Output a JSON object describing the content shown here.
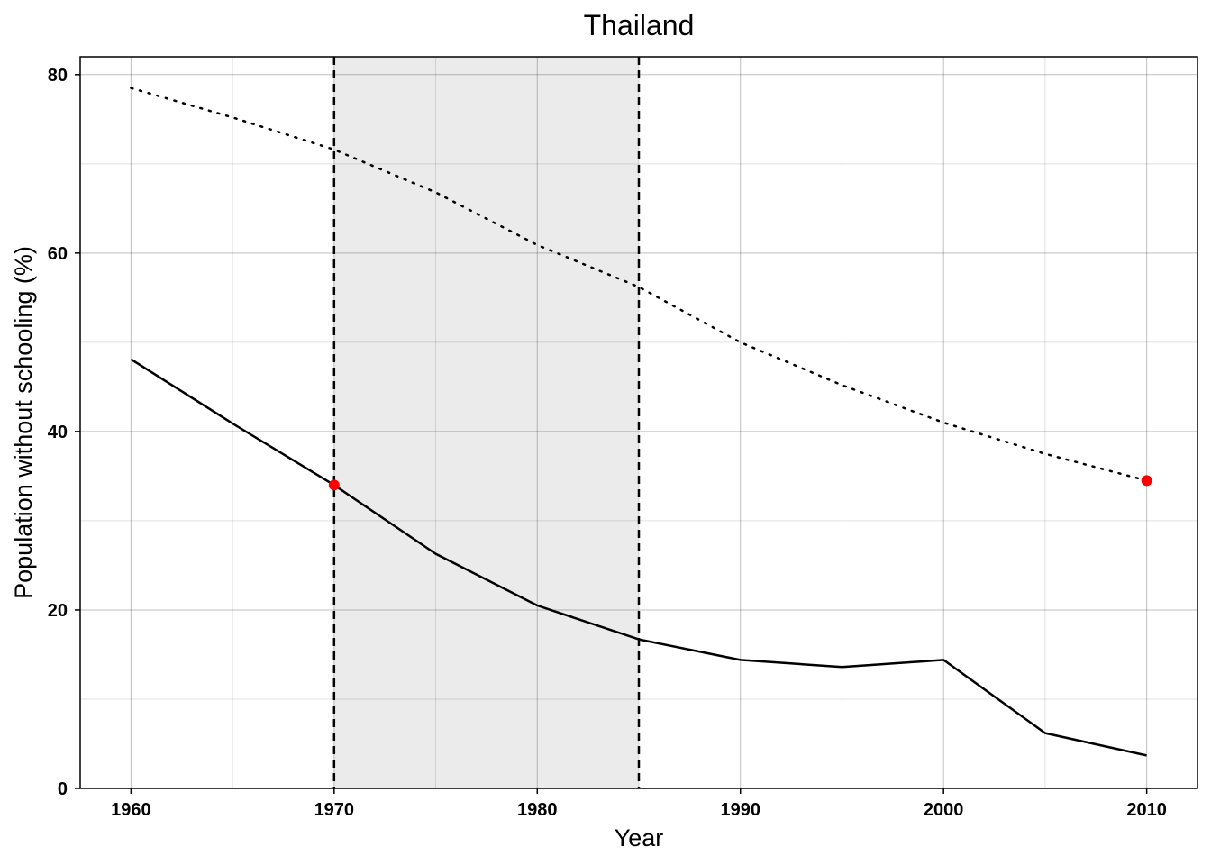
{
  "chart_data": {
    "type": "line",
    "title": "Thailand",
    "xlabel": "Year",
    "ylabel": "Population without schooling (%)",
    "xlim": [
      1957.5,
      2012.5
    ],
    "ylim": [
      0,
      82
    ],
    "x_ticks": [
      1960,
      1970,
      1980,
      1990,
      2000,
      2010
    ],
    "y_ticks": [
      0,
      20,
      40,
      60,
      80
    ],
    "grid": true,
    "shaded_region": {
      "x_start": 1970,
      "x_end": 1985,
      "color": "#ebebeb"
    },
    "vlines": [
      1970,
      1985
    ],
    "series": [
      {
        "style": "dotted",
        "color": "#000000",
        "x": [
          1960,
          1965,
          1970,
          1975,
          1980,
          1985,
          1990,
          1995,
          2000,
          2005,
          2010
        ],
        "values": [
          78.5,
          75.2,
          71.6,
          66.8,
          60.9,
          56.2,
          50.0,
          45.2,
          41.0,
          37.5,
          34.5
        ]
      },
      {
        "style": "solid",
        "color": "#000000",
        "x": [
          1960,
          1965,
          1970,
          1975,
          1980,
          1985,
          1990,
          1995,
          2000,
          2005,
          2010
        ],
        "values": [
          48.1,
          40.9,
          34.0,
          26.3,
          20.5,
          16.7,
          14.4,
          13.6,
          14.4,
          6.2,
          3.7
        ]
      }
    ],
    "highlight_points": [
      {
        "x": 1970,
        "y": 34.0,
        "color": "#ff0000"
      },
      {
        "x": 2010,
        "y": 34.5,
        "color": "#ff0000"
      }
    ]
  }
}
